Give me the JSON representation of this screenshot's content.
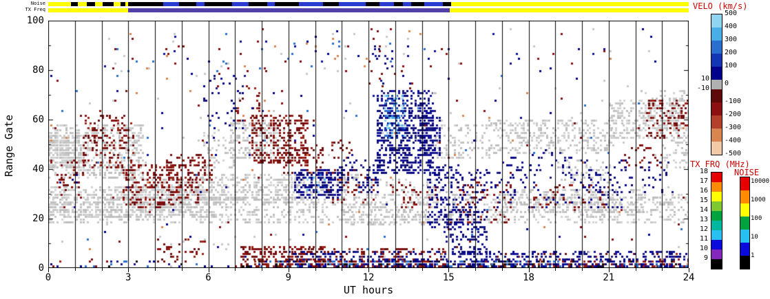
{
  "strips": {
    "noise_label": "Noise",
    "freq_label": "TX Freq",
    "noise_segments": [
      {
        "t": [
          0,
          24
        ],
        "color": "#ffff00"
      },
      {
        "t": [
          0.85,
          1.1
        ],
        "color": "#000000"
      },
      {
        "t": [
          1.45,
          1.75
        ],
        "color": "#000000"
      },
      {
        "t": [
          2.05,
          2.45
        ],
        "color": "#000000"
      },
      {
        "t": [
          2.7,
          2.9
        ],
        "color": "#000000"
      },
      {
        "t": [
          3.0,
          15.1
        ],
        "color": "#000000"
      },
      {
        "t": [
          4.3,
          4.9
        ],
        "color": "#2a3bd0"
      },
      {
        "t": [
          5.55,
          5.85
        ],
        "color": "#2a3bd0"
      },
      {
        "t": [
          6.9,
          7.5
        ],
        "color": "#2a3bd0"
      },
      {
        "t": [
          8.2,
          8.5
        ],
        "color": "#2a3bd0"
      },
      {
        "t": [
          9.4,
          10.3
        ],
        "color": "#2a3bd0"
      },
      {
        "t": [
          10.9,
          11.9
        ],
        "color": "#2a3bd0"
      },
      {
        "t": [
          12.4,
          12.95
        ],
        "color": "#2a3bd0"
      },
      {
        "t": [
          13.3,
          13.6
        ],
        "color": "#2a3bd0"
      },
      {
        "t": [
          14.1,
          14.8
        ],
        "color": "#2a3bd0"
      }
    ],
    "freq_segments": [
      {
        "t": [
          0,
          24
        ],
        "color": "#ffff00"
      },
      {
        "t": [
          3.0,
          15.05
        ],
        "color": "#5140a8"
      }
    ]
  },
  "chart_data": {
    "type": "heatmap",
    "xlabel": "UT hours",
    "ylabel": "Range Gate",
    "xlim": [
      0,
      24
    ],
    "ylim": [
      0,
      100
    ],
    "x_ticks": [
      0,
      3,
      6,
      9,
      12,
      15,
      18,
      21,
      24
    ],
    "y_ticks": [
      0,
      20,
      40,
      60,
      80,
      100
    ],
    "hour_gridlines": true,
    "seed": 7,
    "cell": {
      "dt_hours": 0.08,
      "dgate": 1
    },
    "palettes": {
      "ground": [
        "#c8c8c8",
        "#bebebe",
        "#d3d3d3"
      ],
      "neg_velocity": [
        "#7a0f0f",
        "#8b1010",
        "#681012",
        "#9a2418"
      ],
      "pos_velocity": [
        "#00008b",
        "#12129a",
        "#1c1c7e",
        "#0a0a72"
      ],
      "pos_velocity_fast": [
        "#49ade6",
        "#2a6fd0",
        "#8fd4f0",
        "#1536b4"
      ],
      "mixed": [
        "#c8c8c8",
        "#8b1010",
        "#00008b",
        "#2a6fd0",
        "#7a0f0f",
        "#c8c8c8",
        "#d9854f",
        "#12129a"
      ],
      "mixed_lowgate": [
        "#00008b",
        "#8b1010",
        "#12129a",
        "#9a2418",
        "#2a6fd0",
        "#101010"
      ]
    },
    "regions": [
      {
        "t": [
          0,
          3.6
        ],
        "g": [
          36,
          58
        ],
        "density": 0.45,
        "palette": "ground"
      },
      {
        "t": [
          0,
          1.3
        ],
        "g": [
          40,
          54
        ],
        "density": 0.7,
        "palette": "ground"
      },
      {
        "t": [
          0,
          24
        ],
        "g": [
          18,
          30
        ],
        "density": 0.3,
        "palette": "ground"
      },
      {
        "t": [
          0,
          6.2
        ],
        "g": [
          20,
          33
        ],
        "density": 0.5,
        "palette": "ground"
      },
      {
        "t": [
          3,
          5.6
        ],
        "g": [
          24,
          36
        ],
        "density": 0.45,
        "palette": "ground"
      },
      {
        "t": [
          5.6,
          9.6
        ],
        "g": [
          26,
          38
        ],
        "density": 0.45,
        "palette": "ground"
      },
      {
        "t": [
          6.8,
          8.7
        ],
        "g": [
          44,
          60
        ],
        "density": 0.4,
        "palette": "ground"
      },
      {
        "t": [
          9,
          11.6
        ],
        "g": [
          30,
          38
        ],
        "density": 0.35,
        "palette": "ground"
      },
      {
        "t": [
          14,
          16.5
        ],
        "g": [
          44,
          58
        ],
        "density": 0.25,
        "palette": "ground"
      },
      {
        "t": [
          16.5,
          21.2
        ],
        "g": [
          46,
          60
        ],
        "density": 0.35,
        "palette": "ground"
      },
      {
        "t": [
          21,
          23.7
        ],
        "g": [
          52,
          68
        ],
        "density": 0.4,
        "palette": "ground"
      },
      {
        "t": [
          17,
          22.3
        ],
        "g": [
          22,
          32
        ],
        "density": 0.35,
        "palette": "ground"
      },
      {
        "t": [
          11,
          14.2
        ],
        "g": [
          17,
          26
        ],
        "density": 0.28,
        "palette": "ground"
      },
      {
        "t": [
          22.2,
          24
        ],
        "g": [
          56,
          72
        ],
        "density": 0.3,
        "palette": "ground"
      },
      {
        "t": [
          5.8,
          7.0
        ],
        "g": [
          40,
          56
        ],
        "density": 0.18,
        "palette": "ground"
      },
      {
        "t": [
          12,
          15
        ],
        "g": [
          28,
          36
        ],
        "density": 0.15,
        "palette": "ground"
      },
      {
        "t": [
          19,
          21
        ],
        "g": [
          34,
          44
        ],
        "density": 0.2,
        "palette": "ground"
      },
      {
        "t": [
          23.0,
          24
        ],
        "g": [
          40,
          56
        ],
        "density": 0.25,
        "palette": "ground"
      },
      {
        "t": [
          1.3,
          3.2
        ],
        "g": [
          40,
          62
        ],
        "density": 0.22,
        "palette": "neg_velocity"
      },
      {
        "t": [
          2.8,
          4.7
        ],
        "g": [
          24,
          42
        ],
        "density": 0.3,
        "palette": "neg_velocity"
      },
      {
        "t": [
          4.4,
          6.1
        ],
        "g": [
          34,
          46
        ],
        "density": 0.35,
        "palette": "neg_velocity"
      },
      {
        "t": [
          4.7,
          5.7
        ],
        "g": [
          26,
          36
        ],
        "density": 0.25,
        "palette": "neg_velocity"
      },
      {
        "t": [
          7.6,
          9.7
        ],
        "g": [
          42,
          62
        ],
        "density": 0.4,
        "palette": "neg_velocity"
      },
      {
        "t": [
          8.8,
          10.3
        ],
        "g": [
          38,
          50
        ],
        "density": 0.3,
        "palette": "neg_velocity"
      },
      {
        "t": [
          7.2,
          10.4
        ],
        "g": [
          0,
          9
        ],
        "density": 0.45,
        "palette": "neg_velocity"
      },
      {
        "t": [
          10.4,
          12.3
        ],
        "g": [
          26,
          40
        ],
        "density": 0.16,
        "palette": "neg_velocity"
      },
      {
        "t": [
          15.3,
          17.3
        ],
        "g": [
          18,
          36
        ],
        "density": 0.16,
        "palette": "neg_velocity"
      },
      {
        "t": [
          22.4,
          24
        ],
        "g": [
          52,
          68
        ],
        "density": 0.25,
        "palette": "neg_velocity"
      },
      {
        "t": [
          0.3,
          1.4
        ],
        "g": [
          28,
          44
        ],
        "density": 0.16,
        "palette": "neg_velocity"
      },
      {
        "t": [
          4.0,
          5.9
        ],
        "g": [
          2,
          12
        ],
        "density": 0.2,
        "palette": "neg_velocity"
      },
      {
        "t": [
          7.0,
          7.9
        ],
        "g": [
          58,
          74
        ],
        "density": 0.16,
        "palette": "neg_velocity"
      },
      {
        "t": [
          9,
          15
        ],
        "g": [
          0,
          8
        ],
        "density": 0.25,
        "palette": "neg_velocity"
      },
      {
        "t": [
          12.8,
          14.6
        ],
        "g": [
          24,
          34
        ],
        "density": 0.15,
        "palette": "neg_velocity"
      },
      {
        "t": [
          16,
          24
        ],
        "g": [
          0,
          6
        ],
        "density": 0.12,
        "palette": "neg_velocity"
      },
      {
        "t": [
          18,
          21
        ],
        "g": [
          24,
          34
        ],
        "density": 0.1,
        "palette": "neg_velocity"
      },
      {
        "t": [
          10.6,
          11.4
        ],
        "g": [
          44,
          52
        ],
        "density": 0.2,
        "palette": "neg_velocity"
      },
      {
        "t": [
          21.5,
          23
        ],
        "g": [
          40,
          50
        ],
        "density": 0.15,
        "palette": "neg_velocity"
      },
      {
        "t": [
          9.2,
          11.0
        ],
        "g": [
          28,
          40
        ],
        "density": 0.5,
        "palette": "pos_velocity"
      },
      {
        "t": [
          10.8,
          11.7
        ],
        "g": [
          30,
          46
        ],
        "density": 0.2,
        "palette": "pos_velocity"
      },
      {
        "t": [
          11.6,
          12.4
        ],
        "g": [
          30,
          44
        ],
        "density": 0.2,
        "palette": "pos_velocity"
      },
      {
        "t": [
          12.3,
          14.4
        ],
        "g": [
          38,
          72
        ],
        "density": 0.45,
        "palette": "pos_velocity"
      },
      {
        "t": [
          13.9,
          14.7
        ],
        "g": [
          44,
          64
        ],
        "density": 0.45,
        "palette": "pos_velocity"
      },
      {
        "t": [
          14.2,
          15.5
        ],
        "g": [
          16,
          42
        ],
        "density": 0.3,
        "palette": "pos_velocity"
      },
      {
        "t": [
          14.8,
          16.4
        ],
        "g": [
          0,
          24
        ],
        "density": 0.3,
        "palette": "pos_velocity"
      },
      {
        "t": [
          9,
          24
        ],
        "g": [
          0,
          7
        ],
        "density": 0.3,
        "palette": "pos_velocity"
      },
      {
        "t": [
          16,
          21.5
        ],
        "g": [
          24,
          40
        ],
        "density": 0.08,
        "palette": "pos_velocity"
      },
      {
        "t": [
          5.8,
          7.4
        ],
        "g": [
          55,
          78
        ],
        "density": 0.08,
        "palette": "pos_velocity"
      },
      {
        "t": [
          12.2,
          12.9
        ],
        "g": [
          74,
          90
        ],
        "density": 0.1,
        "palette": "pos_velocity"
      },
      {
        "t": [
          17,
          20
        ],
        "g": [
          36,
          48
        ],
        "density": 0.08,
        "palette": "pos_velocity"
      },
      {
        "t": [
          20,
          23.2
        ],
        "g": [
          30,
          44
        ],
        "density": 0.1,
        "palette": "pos_velocity"
      },
      {
        "t": [
          15.5,
          16.2
        ],
        "g": [
          24,
          40
        ],
        "density": 0.15,
        "palette": "pos_velocity"
      },
      {
        "t": [
          12.6,
          13.4
        ],
        "g": [
          52,
          70
        ],
        "density": 0.35,
        "palette": "pos_velocity_fast"
      },
      {
        "t": [
          9.6,
          10.6
        ],
        "g": [
          30,
          38
        ],
        "density": 0.1,
        "palette": "pos_velocity_fast"
      },
      {
        "t": [
          0,
          24
        ],
        "g": [
          0,
          97
        ],
        "density": 0.012,
        "palette": "mixed"
      },
      {
        "t": [
          3.5,
          14.5
        ],
        "g": [
          76,
          96
        ],
        "density": 0.02,
        "palette": "mixed"
      },
      {
        "t": [
          7,
          24
        ],
        "g": [
          0,
          3
        ],
        "density": 0.45,
        "palette": "mixed_lowgate"
      },
      {
        "t": [
          0,
          7
        ],
        "g": [
          0,
          3
        ],
        "density": 0.08,
        "palette": "mixed_lowgate"
      }
    ],
    "colorbars": {
      "velocity": {
        "title": "VELO (km/s)",
        "segments": [
          {
            "from": 500,
            "to": 400,
            "color": "#8fd4f0"
          },
          {
            "from": 400,
            "to": 300,
            "color": "#49ade6"
          },
          {
            "from": 300,
            "to": 200,
            "color": "#2a6fd0"
          },
          {
            "from": 200,
            "to": 100,
            "color": "#1536b4"
          },
          {
            "from": 100,
            "to": 10,
            "color": "#00008b"
          },
          {
            "from": 10,
            "to": -10,
            "color": "#b0b0b0"
          },
          {
            "from": -10,
            "to": -100,
            "color": "#5e0a0a"
          },
          {
            "from": -100,
            "to": -200,
            "color": "#8b1010"
          },
          {
            "from": -200,
            "to": -300,
            "color": "#b2402a"
          },
          {
            "from": -300,
            "to": -400,
            "color": "#d9854f"
          },
          {
            "from": -400,
            "to": -500,
            "color": "#f2cba6"
          }
        ],
        "right_labels": [
          "500",
          "400",
          "300",
          "200",
          "100",
          "0",
          "-100",
          "-200",
          "-300",
          "-400",
          "-500"
        ],
        "left_labels": [
          "10",
          "-10"
        ]
      },
      "tx_freq": {
        "title": "TX FRQ (MHz)",
        "labels": [
          "18",
          "17",
          "16",
          "15",
          "14",
          "13",
          "12",
          "11",
          "10",
          "9"
        ],
        "colors": [
          "#e60000",
          "#ff8c00",
          "#ffff00",
          "#7ec832",
          "#00a33e",
          "#00b7a0",
          "#27c0f0",
          "#0a0adc",
          "#8428bd",
          "#000000"
        ]
      },
      "noise": {
        "title": "NOISE",
        "labels": [
          "10000",
          "1000",
          "100",
          "10",
          "1"
        ],
        "colors": [
          "#e60000",
          "#ff8c00",
          "#ffff00",
          "#00a33e",
          "#27c0f0",
          "#0a0adc",
          "#000000"
        ]
      }
    }
  }
}
